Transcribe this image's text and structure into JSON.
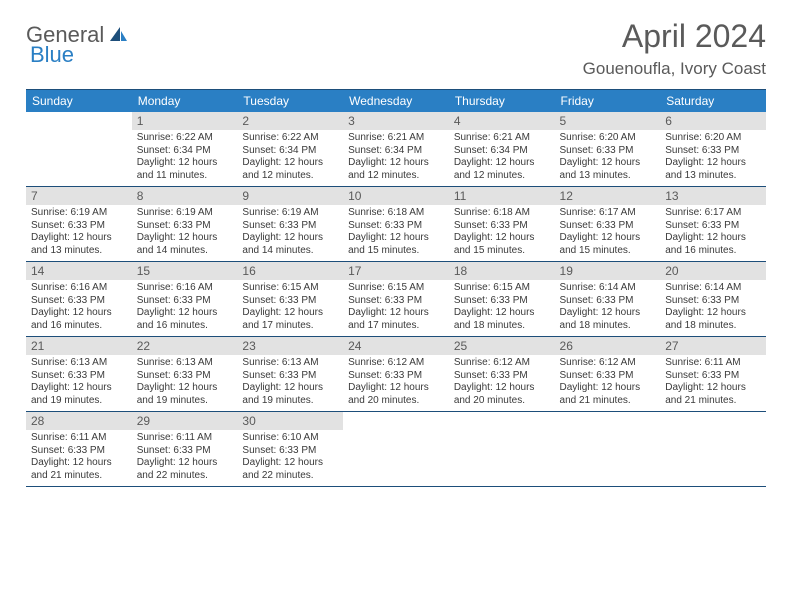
{
  "logo": {
    "text1": "General",
    "text2": "Blue",
    "brand_color": "#2a7fc4",
    "text_color": "#5a5a5a"
  },
  "title": "April 2024",
  "location": "Gouenoufla, Ivory Coast",
  "day_names": [
    "Sunday",
    "Monday",
    "Tuesday",
    "Wednesday",
    "Thursday",
    "Friday",
    "Saturday"
  ],
  "header_bg": "#2a7fc4",
  "header_text": "#ffffff",
  "rule_color": "#1d4e7a",
  "daynum_bg": "#e2e2e2",
  "body_text": "#3a3a3a",
  "weeks": [
    [
      {
        "n": "",
        "sr": "",
        "ss": "",
        "dl": ""
      },
      {
        "n": "1",
        "sr": "Sunrise: 6:22 AM",
        "ss": "Sunset: 6:34 PM",
        "dl": "Daylight: 12 hours and 11 minutes."
      },
      {
        "n": "2",
        "sr": "Sunrise: 6:22 AM",
        "ss": "Sunset: 6:34 PM",
        "dl": "Daylight: 12 hours and 12 minutes."
      },
      {
        "n": "3",
        "sr": "Sunrise: 6:21 AM",
        "ss": "Sunset: 6:34 PM",
        "dl": "Daylight: 12 hours and 12 minutes."
      },
      {
        "n": "4",
        "sr": "Sunrise: 6:21 AM",
        "ss": "Sunset: 6:34 PM",
        "dl": "Daylight: 12 hours and 12 minutes."
      },
      {
        "n": "5",
        "sr": "Sunrise: 6:20 AM",
        "ss": "Sunset: 6:33 PM",
        "dl": "Daylight: 12 hours and 13 minutes."
      },
      {
        "n": "6",
        "sr": "Sunrise: 6:20 AM",
        "ss": "Sunset: 6:33 PM",
        "dl": "Daylight: 12 hours and 13 minutes."
      }
    ],
    [
      {
        "n": "7",
        "sr": "Sunrise: 6:19 AM",
        "ss": "Sunset: 6:33 PM",
        "dl": "Daylight: 12 hours and 13 minutes."
      },
      {
        "n": "8",
        "sr": "Sunrise: 6:19 AM",
        "ss": "Sunset: 6:33 PM",
        "dl": "Daylight: 12 hours and 14 minutes."
      },
      {
        "n": "9",
        "sr": "Sunrise: 6:19 AM",
        "ss": "Sunset: 6:33 PM",
        "dl": "Daylight: 12 hours and 14 minutes."
      },
      {
        "n": "10",
        "sr": "Sunrise: 6:18 AM",
        "ss": "Sunset: 6:33 PM",
        "dl": "Daylight: 12 hours and 15 minutes."
      },
      {
        "n": "11",
        "sr": "Sunrise: 6:18 AM",
        "ss": "Sunset: 6:33 PM",
        "dl": "Daylight: 12 hours and 15 minutes."
      },
      {
        "n": "12",
        "sr": "Sunrise: 6:17 AM",
        "ss": "Sunset: 6:33 PM",
        "dl": "Daylight: 12 hours and 15 minutes."
      },
      {
        "n": "13",
        "sr": "Sunrise: 6:17 AM",
        "ss": "Sunset: 6:33 PM",
        "dl": "Daylight: 12 hours and 16 minutes."
      }
    ],
    [
      {
        "n": "14",
        "sr": "Sunrise: 6:16 AM",
        "ss": "Sunset: 6:33 PM",
        "dl": "Daylight: 12 hours and 16 minutes."
      },
      {
        "n": "15",
        "sr": "Sunrise: 6:16 AM",
        "ss": "Sunset: 6:33 PM",
        "dl": "Daylight: 12 hours and 16 minutes."
      },
      {
        "n": "16",
        "sr": "Sunrise: 6:15 AM",
        "ss": "Sunset: 6:33 PM",
        "dl": "Daylight: 12 hours and 17 minutes."
      },
      {
        "n": "17",
        "sr": "Sunrise: 6:15 AM",
        "ss": "Sunset: 6:33 PM",
        "dl": "Daylight: 12 hours and 17 minutes."
      },
      {
        "n": "18",
        "sr": "Sunrise: 6:15 AM",
        "ss": "Sunset: 6:33 PM",
        "dl": "Daylight: 12 hours and 18 minutes."
      },
      {
        "n": "19",
        "sr": "Sunrise: 6:14 AM",
        "ss": "Sunset: 6:33 PM",
        "dl": "Daylight: 12 hours and 18 minutes."
      },
      {
        "n": "20",
        "sr": "Sunrise: 6:14 AM",
        "ss": "Sunset: 6:33 PM",
        "dl": "Daylight: 12 hours and 18 minutes."
      }
    ],
    [
      {
        "n": "21",
        "sr": "Sunrise: 6:13 AM",
        "ss": "Sunset: 6:33 PM",
        "dl": "Daylight: 12 hours and 19 minutes."
      },
      {
        "n": "22",
        "sr": "Sunrise: 6:13 AM",
        "ss": "Sunset: 6:33 PM",
        "dl": "Daylight: 12 hours and 19 minutes."
      },
      {
        "n": "23",
        "sr": "Sunrise: 6:13 AM",
        "ss": "Sunset: 6:33 PM",
        "dl": "Daylight: 12 hours and 19 minutes."
      },
      {
        "n": "24",
        "sr": "Sunrise: 6:12 AM",
        "ss": "Sunset: 6:33 PM",
        "dl": "Daylight: 12 hours and 20 minutes."
      },
      {
        "n": "25",
        "sr": "Sunrise: 6:12 AM",
        "ss": "Sunset: 6:33 PM",
        "dl": "Daylight: 12 hours and 20 minutes."
      },
      {
        "n": "26",
        "sr": "Sunrise: 6:12 AM",
        "ss": "Sunset: 6:33 PM",
        "dl": "Daylight: 12 hours and 21 minutes."
      },
      {
        "n": "27",
        "sr": "Sunrise: 6:11 AM",
        "ss": "Sunset: 6:33 PM",
        "dl": "Daylight: 12 hours and 21 minutes."
      }
    ],
    [
      {
        "n": "28",
        "sr": "Sunrise: 6:11 AM",
        "ss": "Sunset: 6:33 PM",
        "dl": "Daylight: 12 hours and 21 minutes."
      },
      {
        "n": "29",
        "sr": "Sunrise: 6:11 AM",
        "ss": "Sunset: 6:33 PM",
        "dl": "Daylight: 12 hours and 22 minutes."
      },
      {
        "n": "30",
        "sr": "Sunrise: 6:10 AM",
        "ss": "Sunset: 6:33 PM",
        "dl": "Daylight: 12 hours and 22 minutes."
      },
      {
        "n": "",
        "sr": "",
        "ss": "",
        "dl": ""
      },
      {
        "n": "",
        "sr": "",
        "ss": "",
        "dl": ""
      },
      {
        "n": "",
        "sr": "",
        "ss": "",
        "dl": ""
      },
      {
        "n": "",
        "sr": "",
        "ss": "",
        "dl": ""
      }
    ]
  ]
}
